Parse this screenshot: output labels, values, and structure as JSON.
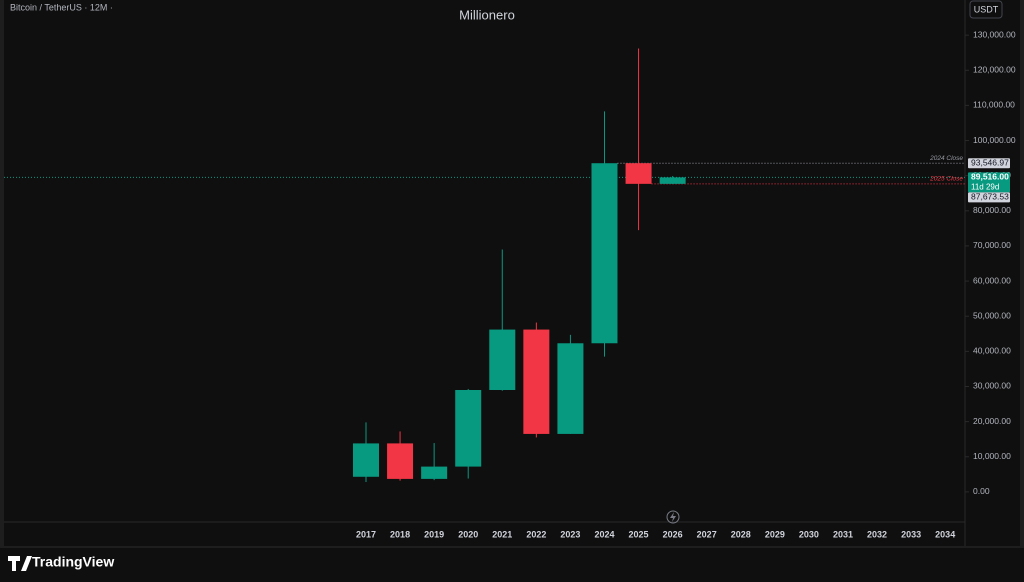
{
  "chart_data": {
    "type": "candlestick",
    "symbol": "Bitcoin / TetherUS · 12M ·",
    "title": "Millionero",
    "currency": "USDT",
    "categories": [
      "2017",
      "2018",
      "2019",
      "2020",
      "2021",
      "2022",
      "2023",
      "2024",
      "2025",
      "2026",
      "2027",
      "2028",
      "2029",
      "2030",
      "2031",
      "2032",
      "2033",
      "2034"
    ],
    "open": [
      4300,
      13800,
      3700,
      7200,
      29000,
      46200,
      16500,
      42300,
      93546.97,
      87673.53,
      null,
      null,
      null,
      null,
      null,
      null,
      null,
      null
    ],
    "high": [
      19800,
      17200,
      13900,
      29300,
      69000,
      48200,
      44700,
      108300,
      126200,
      89900,
      null,
      null,
      null,
      null,
      null,
      null,
      null,
      null
    ],
    "low": [
      2800,
      3200,
      3350,
      3800,
      28800,
      15500,
      16500,
      38500,
      74500,
      87600,
      null,
      null,
      null,
      null,
      null,
      null,
      null,
      null
    ],
    "close": [
      13800,
      3700,
      7200,
      29000,
      46200,
      16500,
      42300,
      93546.97,
      87673.53,
      89516,
      null,
      null,
      null,
      null,
      null,
      null,
      null,
      null
    ],
    "up_color": "#089981",
    "down_color": "#f23645",
    "ylim": [
      -8000,
      140000
    ],
    "yticks": [
      {
        "value": 0,
        "label": "0.00"
      },
      {
        "value": 10000,
        "label": "10,000.00"
      },
      {
        "value": 20000,
        "label": "20,000.00"
      },
      {
        "value": 30000,
        "label": "30,000.00"
      },
      {
        "value": 40000,
        "label": "40,000.00"
      },
      {
        "value": 50000,
        "label": "50,000.00"
      },
      {
        "value": 60000,
        "label": "60,000.00"
      },
      {
        "value": 70000,
        "label": "70,000.00"
      },
      {
        "value": 80000,
        "label": "80,000.00"
      },
      {
        "value": 90000,
        "label": "90,000.00"
      },
      {
        "value": 100000,
        "label": "100,000.00"
      },
      {
        "value": 110000,
        "label": "110,000.00"
      },
      {
        "value": 120000,
        "label": "120,000.00"
      },
      {
        "value": 130000,
        "label": "130,000.00"
      }
    ],
    "price_lines": [
      {
        "name": "2024 Close",
        "value": 93546.97,
        "value_label": "93,546.97",
        "color": "#9598a1"
      },
      {
        "name": "2025 Close",
        "value": 87673.53,
        "value_label": "87,673.53",
        "color": "#f23645"
      }
    ],
    "last_price": {
      "value": 89516,
      "value_label": "89,516.00",
      "countdown": "11d 29d",
      "color": "#089981"
    },
    "brand": "TradingView"
  }
}
